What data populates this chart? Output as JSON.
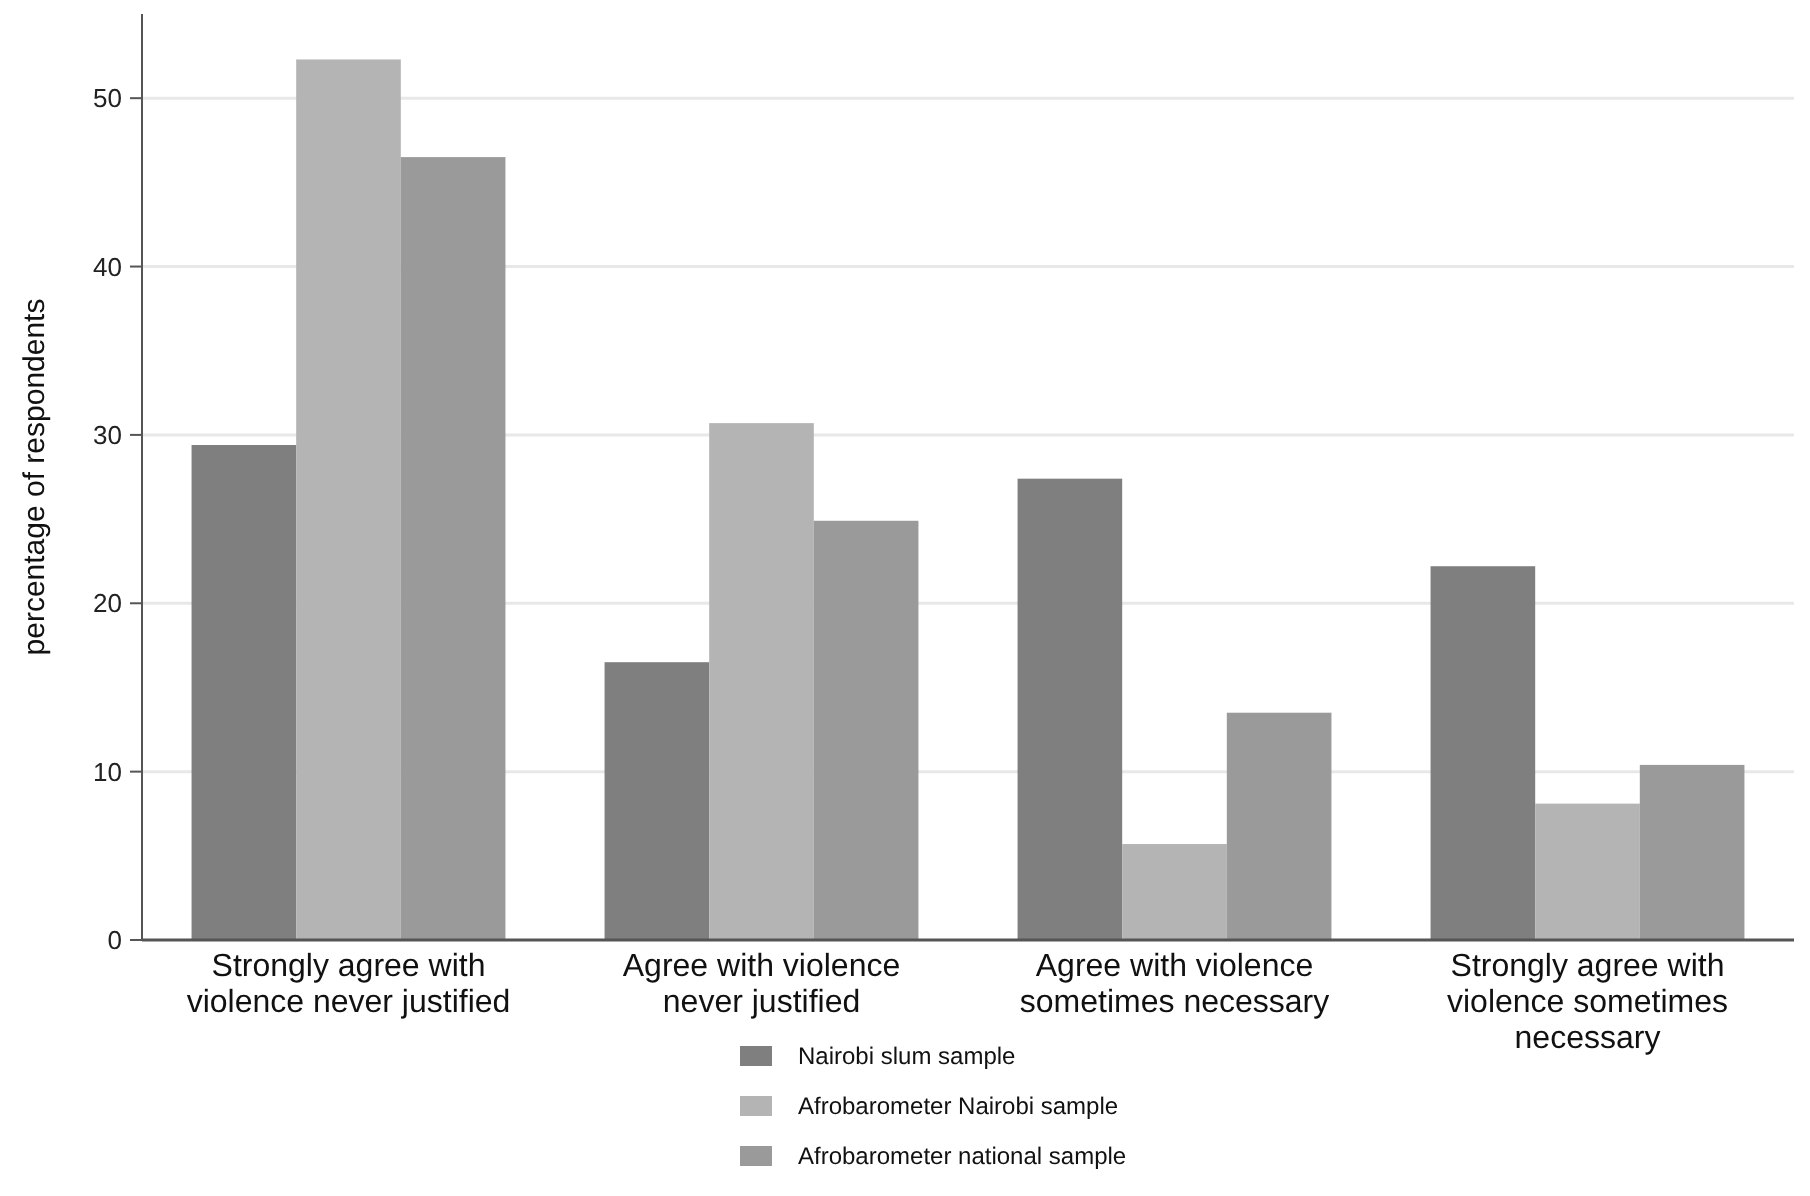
{
  "chart_data": {
    "type": "bar",
    "ylabel": "percentage of respondents",
    "categories": [
      "Strongly agree with violence never justified",
      "Agree with violence never justified",
      "Agree with violence sometimes necessary",
      "Strongly agree with violence sometimes necessary"
    ],
    "series": [
      {
        "name": "Nairobi slum sample",
        "color": "#7f7f7f",
        "values": [
          29.4,
          16.5,
          27.4,
          22.2
        ]
      },
      {
        "name": "Afrobarometer Nairobi sample",
        "color": "#b4b4b4",
        "values": [
          52.3,
          30.7,
          5.7,
          8.1
        ]
      },
      {
        "name": "Afrobarometer national sample",
        "color": "#9a9a9a",
        "values": [
          46.5,
          24.9,
          13.5,
          10.4
        ]
      }
    ],
    "ylim": [
      0,
      55
    ],
    "yticks": [
      0,
      10,
      20,
      30,
      40,
      50
    ],
    "grid": "y",
    "legend": "bottom"
  }
}
